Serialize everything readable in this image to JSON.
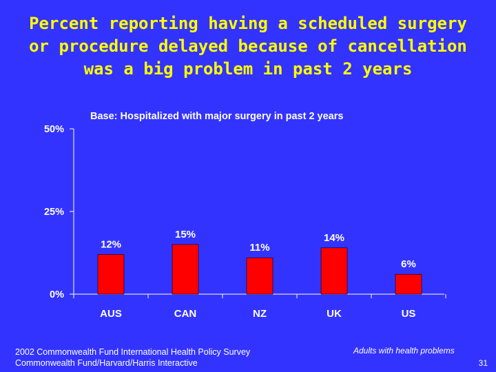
{
  "slide": {
    "title_lines": [
      "Percent reporting having a scheduled surgery",
      "or procedure delayed because of cancellation",
      "was a big problem in past 2 years"
    ],
    "footer_source_lines": [
      "2002 Commonwealth Fund International Health Policy Survey",
      "Commonwealth Fund/Harvard/Harris Interactive"
    ],
    "footer_note": "Adults with health problems",
    "page_number": "31"
  },
  "colors": {
    "background": "#3333ff",
    "title": "#ffff00",
    "bar": "#ff0000",
    "text": "#ffffff",
    "axis": "#ffffff"
  },
  "chart_data": {
    "type": "bar",
    "title": "Base: Hospitalized with major surgery in past 2 years",
    "categories": [
      "AUS",
      "CAN",
      "NZ",
      "UK",
      "US"
    ],
    "values": [
      12,
      15,
      11,
      14,
      6
    ],
    "value_labels": [
      "12%",
      "15%",
      "11%",
      "14%",
      "6%"
    ],
    "ylim": [
      0,
      50
    ],
    "yticks": [
      0,
      25,
      50
    ],
    "ytick_labels": [
      "0%",
      "25%",
      "50%"
    ],
    "xlabel": "",
    "ylabel": "",
    "grid": false,
    "legend": "none"
  }
}
